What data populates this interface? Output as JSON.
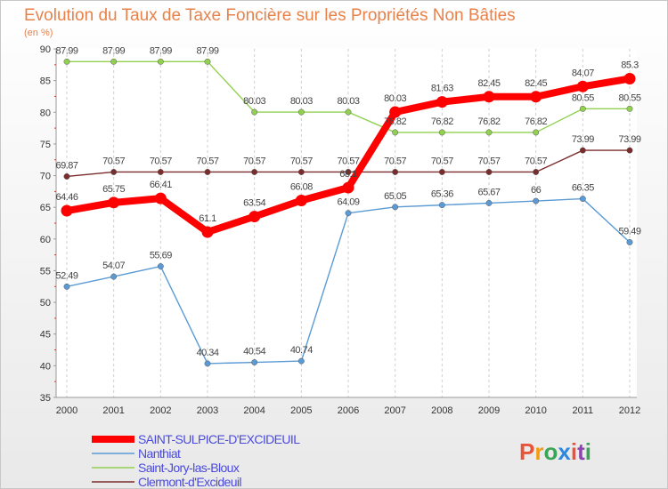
{
  "chart_data": {
    "type": "line",
    "title": "Evolution du Taux de Taxe Foncière sur les Propriétés Non Bâties",
    "subtitle": "(en %)",
    "categories": [
      "2000",
      "2001",
      "2002",
      "2003",
      "2004",
      "2005",
      "2006",
      "2007",
      "2008",
      "2009",
      "2010",
      "2011",
      "2012"
    ],
    "ylim": [
      35,
      90
    ],
    "yticks": [
      35,
      40,
      45,
      50,
      55,
      60,
      65,
      70,
      75,
      80,
      85,
      90
    ],
    "grid": "vertical dashed",
    "legend_position": "bottom-left",
    "series": [
      {
        "name": "SAINT-SULPICE-D'EXCIDEUIL",
        "color": "#ff0000",
        "values": [
          64.46,
          65.75,
          66.41,
          61.1,
          63.54,
          66.08,
          68.1,
          80.03,
          81.63,
          82.45,
          82.45,
          84.07,
          85.3
        ],
        "labels": [
          "64.46",
          "65.75",
          "66.41",
          "61.1",
          "63.54",
          "66.08",
          "68.1",
          "80.03",
          "81.63",
          "82.45",
          "82.45",
          "84.07",
          "85.3"
        ]
      },
      {
        "name": "Nanthiat",
        "color": "#5b9bd5",
        "values": [
          52.49,
          54.07,
          55.69,
          40.34,
          40.54,
          40.74,
          64.09,
          65.05,
          65.36,
          65.67,
          66,
          66.35,
          59.49
        ],
        "labels": [
          "52.49",
          "54.07",
          "55.69",
          "40.34",
          "40.54",
          "40.74",
          "64.09",
          "65.05",
          "65.36",
          "65.67",
          "66",
          "66.35",
          "59.49"
        ]
      },
      {
        "name": "Saint-Jory-las-Bloux",
        "color": "#92d050",
        "values": [
          87.99,
          87.99,
          87.99,
          87.99,
          80.03,
          80.03,
          80.03,
          76.82,
          76.82,
          76.82,
          76.82,
          80.55,
          80.55
        ],
        "labels": [
          "87.99",
          "87.99",
          "87.99",
          "87.99",
          "80.03",
          "80.03",
          "80.03",
          "76.82",
          "76.82",
          "76.82",
          "76.82",
          "80.55",
          "80.55"
        ]
      },
      {
        "name": "Clermont-d'Excideuil",
        "color": "#7b2c2c",
        "values": [
          69.87,
          70.57,
          70.57,
          70.57,
          70.57,
          70.57,
          70.57,
          70.57,
          70.57,
          70.57,
          70.57,
          73.99,
          73.99
        ],
        "labels": [
          "69.87",
          "70.57",
          "70.57",
          "70.57",
          "70.57",
          "70.57",
          "70.57",
          "70.57",
          "70.57",
          "70.57",
          "70.57",
          "73.99",
          "73.99"
        ]
      }
    ],
    "legend_text_color": "#4a4adc"
  },
  "logo": {
    "text": "Proxiti",
    "colors": [
      "#e8543a",
      "#f39c12",
      "#3aa655",
      "#2e86de",
      "#e8543a",
      "#8e44ad",
      "#3aa655"
    ]
  }
}
